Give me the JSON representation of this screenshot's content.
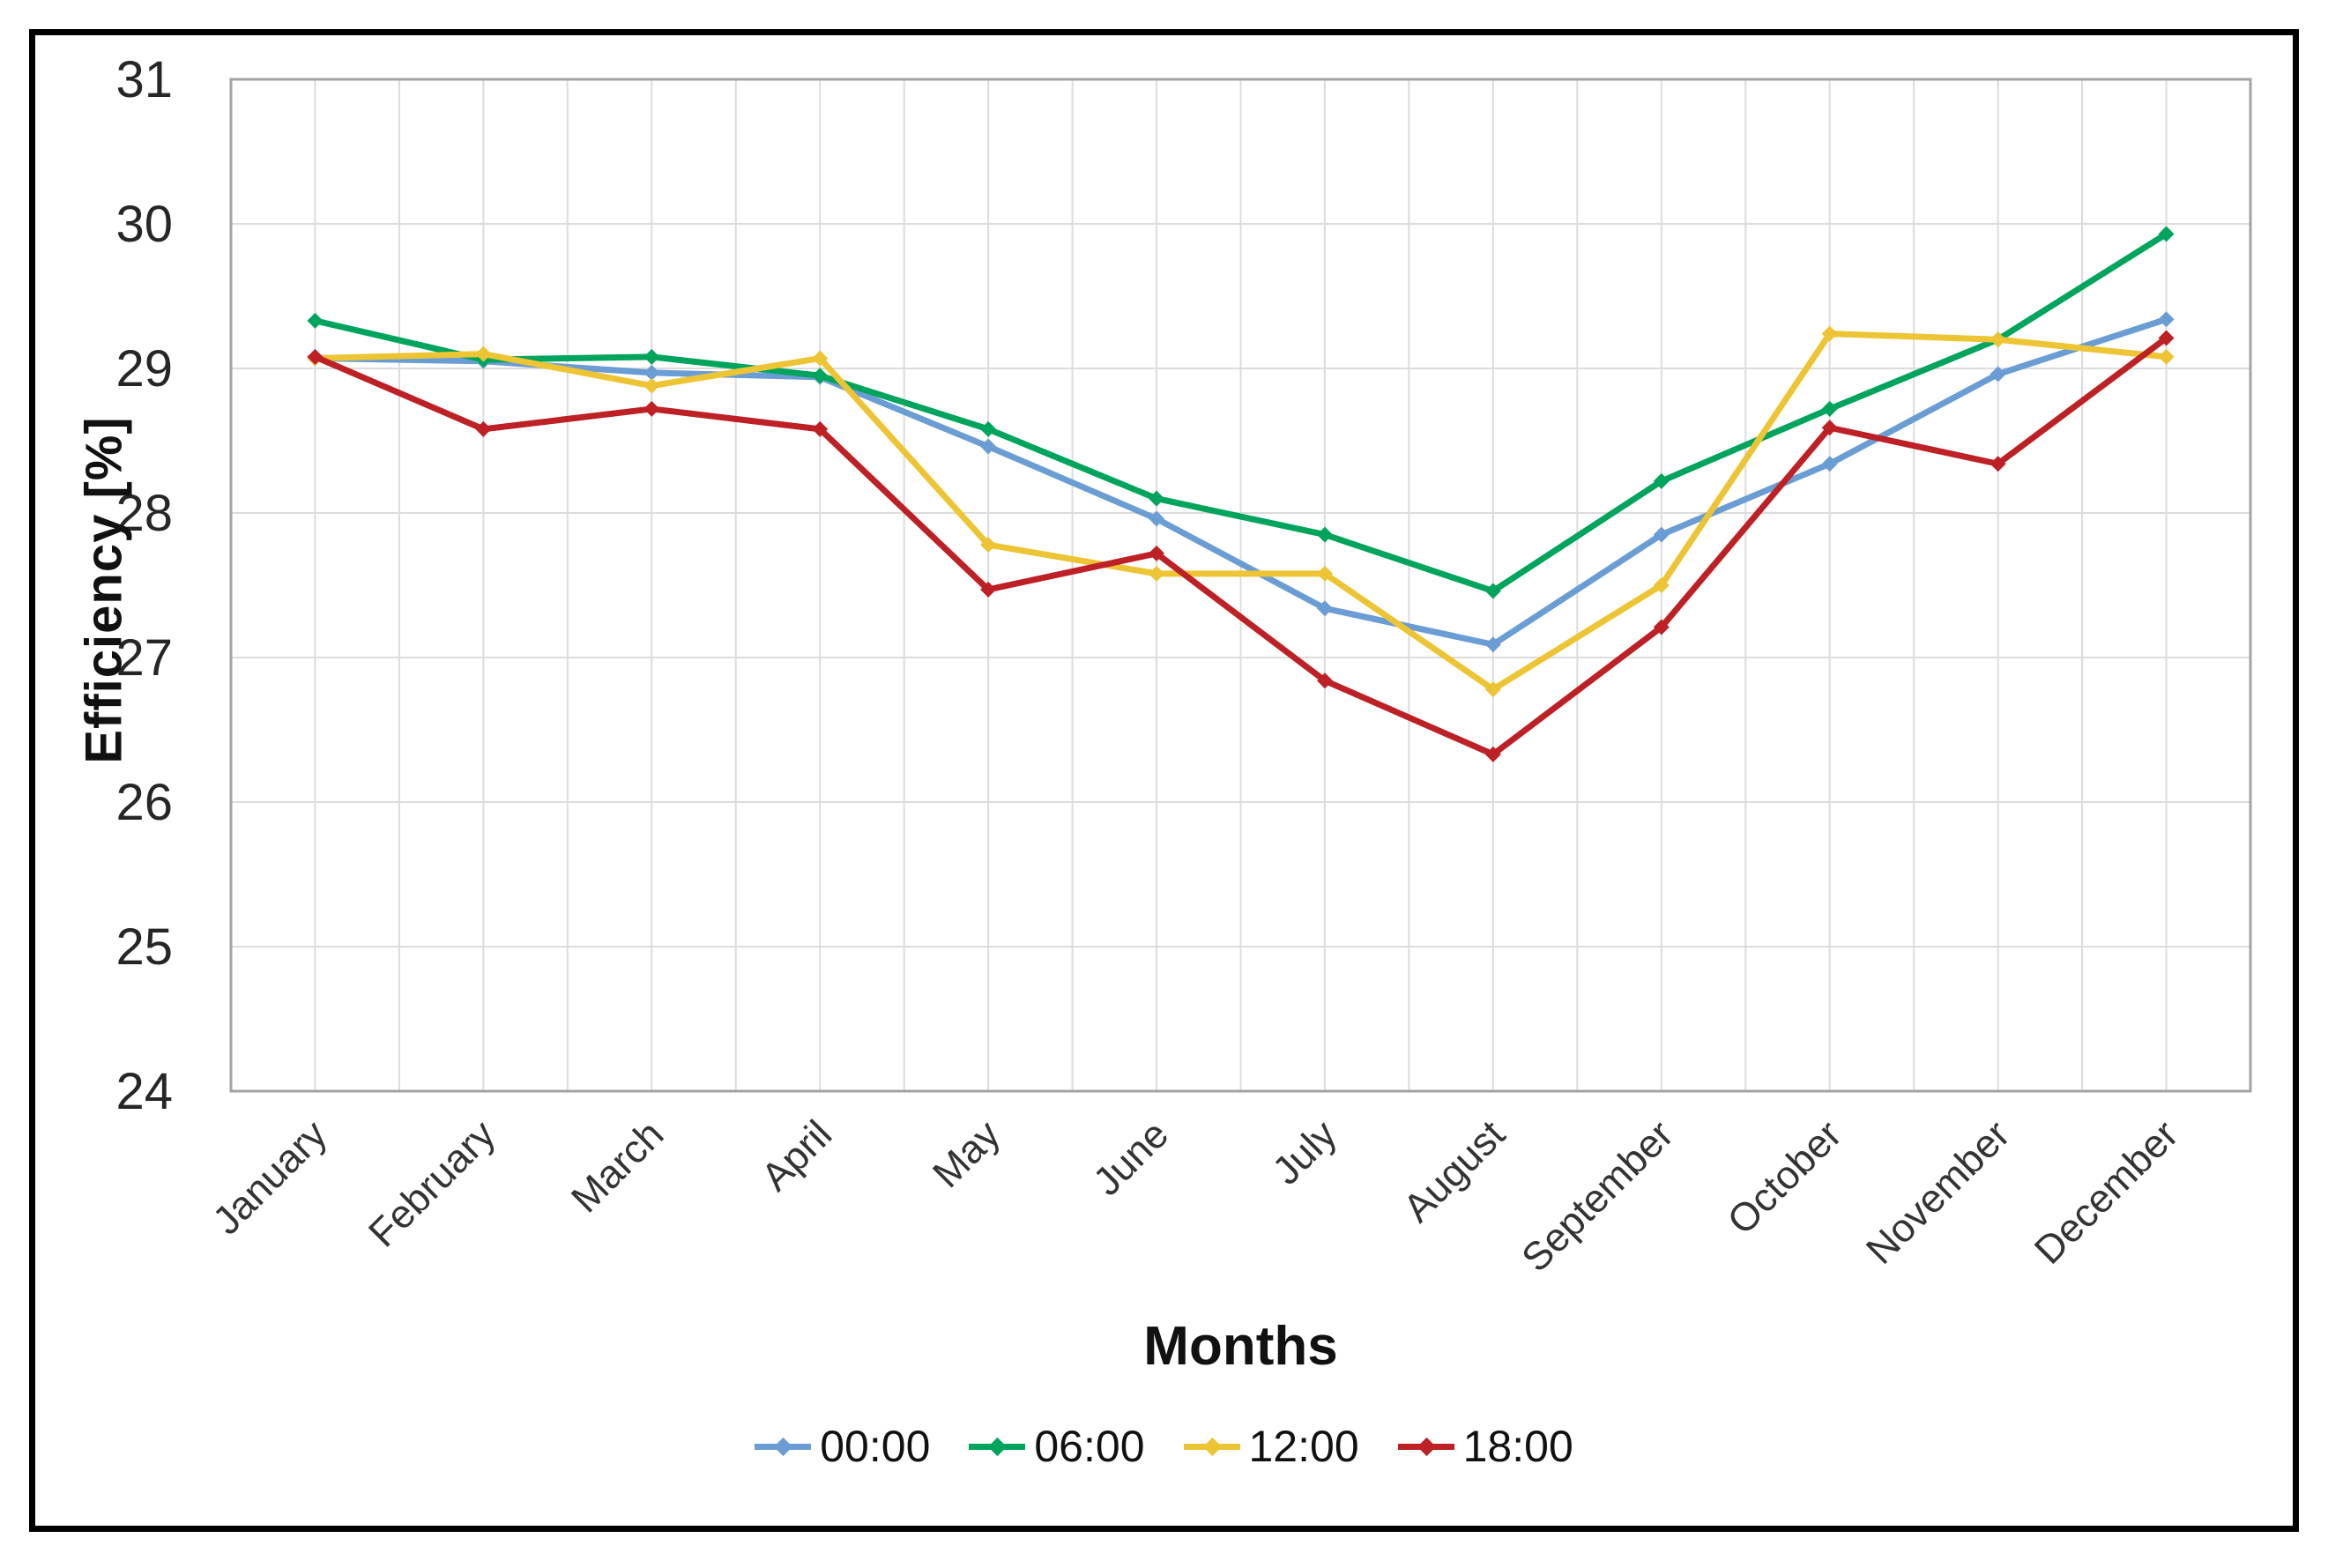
{
  "chart_data": {
    "type": "line",
    "title": "",
    "xlabel": "Months",
    "ylabel": "Efficiency [%]",
    "ylim": [
      24,
      31
    ],
    "yticks": [
      24,
      25,
      26,
      27,
      28,
      29,
      30,
      31
    ],
    "grid": true,
    "legend_position": "bottom",
    "categories": [
      "January",
      "February",
      "March",
      "April",
      "May",
      "June",
      "July",
      "August",
      "September",
      "October",
      "November",
      "December"
    ],
    "series": [
      {
        "name": "00:00",
        "color": "#6A9DD4",
        "values": [
          29.07,
          29.05,
          28.97,
          28.94,
          28.46,
          27.96,
          27.34,
          27.09,
          27.85,
          28.34,
          28.96,
          29.34
        ]
      },
      {
        "name": "06:00",
        "color": "#00A45C",
        "values": [
          29.33,
          29.06,
          29.08,
          28.95,
          28.58,
          28.1,
          27.85,
          27.46,
          28.22,
          28.72,
          29.2,
          29.93
        ]
      },
      {
        "name": "12:00",
        "color": "#EDC434",
        "values": [
          29.07,
          29.1,
          28.88,
          29.07,
          27.78,
          27.58,
          27.58,
          26.78,
          27.5,
          29.24,
          29.2,
          29.08
        ]
      },
      {
        "name": "18:00",
        "color": "#BD2025",
        "values": [
          29.08,
          28.58,
          28.72,
          28.58,
          27.47,
          27.72,
          26.84,
          26.33,
          27.21,
          28.59,
          28.34,
          29.21
        ]
      }
    ],
    "style": {
      "gridline_color": "#DCDCDC",
      "plot_border_color": "#A3A3A3",
      "tick_label_color": "#262626",
      "frame_color": "#000000"
    }
  }
}
